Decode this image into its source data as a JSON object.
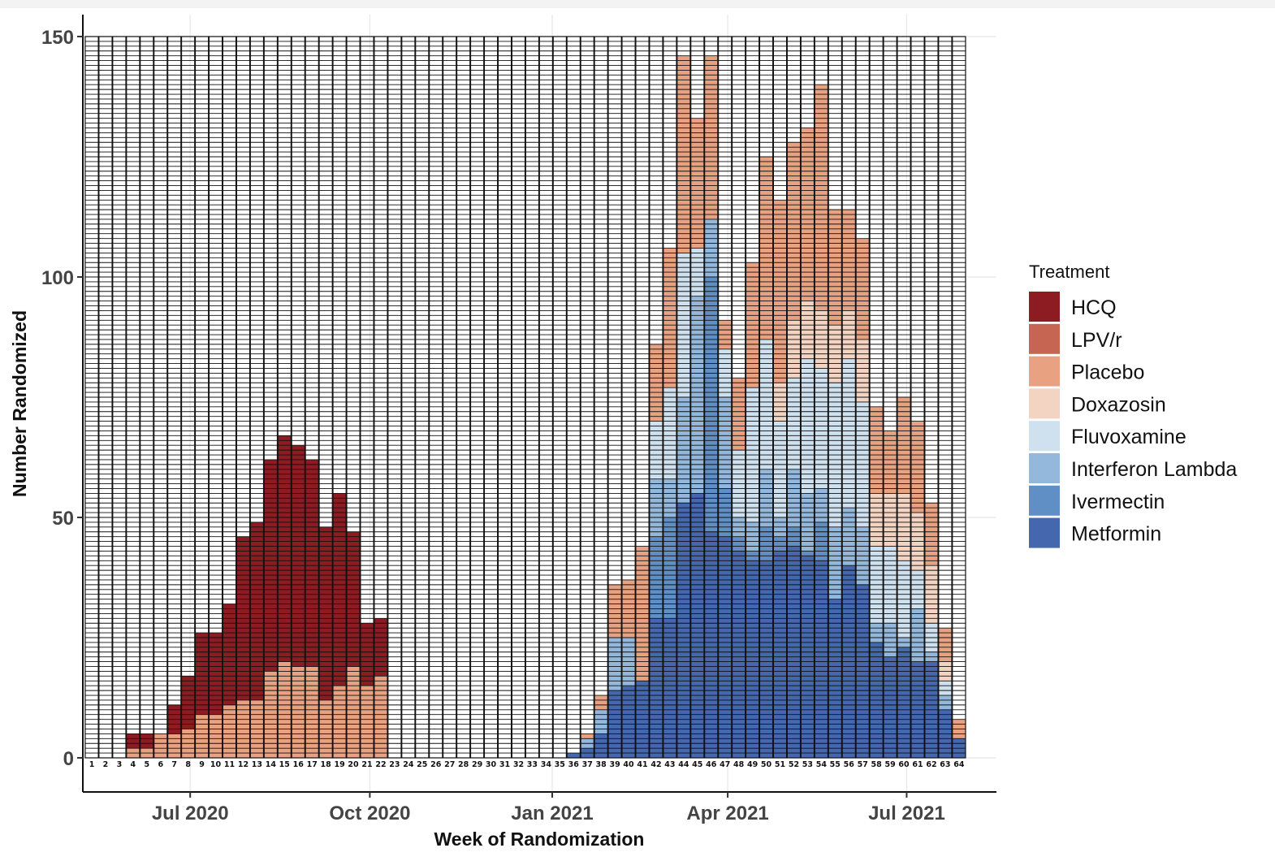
{
  "chart_data": {
    "type": "bar",
    "stacked": true,
    "xlabel": "Week of Randomization",
    "ylabel": "Number Randomized",
    "ylim": [
      0,
      150
    ],
    "y_ticks": [
      0,
      50,
      100,
      150
    ],
    "grid": true,
    "legend_position": "right",
    "legend_title": "Treatment",
    "date_ticks": [
      {
        "label": "Jul 2020",
        "week": 8.15
      },
      {
        "label": "Oct 2020",
        "week": 21.2
      },
      {
        "label": "Jan 2021",
        "week": 34.45
      },
      {
        "label": "Apr 2021",
        "week": 47.2
      },
      {
        "label": "Jul 2021",
        "week": 60.2
      }
    ],
    "categories": [
      "1",
      "2",
      "3",
      "4",
      "5",
      "6",
      "7",
      "8",
      "9",
      "10",
      "11",
      "12",
      "13",
      "14",
      "15",
      "16",
      "17",
      "18",
      "19",
      "20",
      "21",
      "22",
      "23",
      "24",
      "25",
      "26",
      "27",
      "28",
      "29",
      "30",
      "31",
      "32",
      "33",
      "34",
      "35",
      "36",
      "37",
      "38",
      "39",
      "40",
      "41",
      "42",
      "43",
      "44",
      "45",
      "46",
      "47",
      "48",
      "49",
      "50",
      "51",
      "52",
      "53",
      "54",
      "55",
      "56",
      "57",
      "58",
      "59",
      "60",
      "61",
      "62",
      "63",
      "64"
    ],
    "series": [
      {
        "name": "Metformin",
        "color": "#4467ad",
        "values": [
          0,
          0,
          0,
          0,
          0,
          0,
          0,
          0,
          0,
          0,
          0,
          0,
          0,
          0,
          0,
          0,
          0,
          0,
          0,
          0,
          0,
          0,
          0,
          0,
          0,
          0,
          0,
          0,
          0,
          0,
          0,
          0,
          0,
          0,
          0,
          1,
          2,
          5,
          14,
          15,
          16,
          29,
          29,
          53,
          55,
          47,
          46,
          43,
          41,
          41,
          43,
          44,
          42,
          41,
          33,
          40,
          36,
          24,
          21,
          23,
          20,
          20,
          10,
          4
        ]
      },
      {
        "name": "Ivermectin",
        "color": "#5f8fc5",
        "values": [
          0,
          0,
          0,
          0,
          0,
          0,
          0,
          0,
          0,
          0,
          0,
          0,
          0,
          0,
          0,
          0,
          0,
          0,
          0,
          0,
          0,
          0,
          0,
          0,
          0,
          0,
          0,
          0,
          0,
          0,
          0,
          0,
          0,
          0,
          0,
          0,
          0,
          0,
          0,
          0,
          0,
          17,
          21,
          0,
          0,
          53,
          10,
          3,
          2,
          7,
          3,
          4,
          1,
          8,
          0,
          0,
          0,
          0,
          0,
          0,
          0,
          0,
          0,
          0
        ]
      },
      {
        "name": "Interferon Lambda",
        "color": "#93b8db",
        "values": [
          0,
          0,
          0,
          0,
          0,
          0,
          0,
          0,
          0,
          0,
          0,
          0,
          0,
          0,
          0,
          0,
          0,
          0,
          0,
          0,
          0,
          0,
          0,
          0,
          0,
          0,
          0,
          0,
          0,
          0,
          0,
          0,
          0,
          0,
          0,
          0,
          2,
          5,
          11,
          10,
          0,
          12,
          8,
          22,
          41,
          12,
          19,
          4,
          6,
          12,
          4,
          12,
          12,
          7,
          15,
          12,
          12,
          4,
          7,
          2,
          11,
          2,
          3,
          0
        ]
      },
      {
        "name": "Fluvoxamine",
        "color": "#cfe1ef",
        "values": [
          0,
          0,
          0,
          0,
          0,
          0,
          0,
          0,
          0,
          0,
          0,
          0,
          0,
          0,
          0,
          0,
          0,
          0,
          0,
          0,
          0,
          0,
          0,
          0,
          0,
          0,
          0,
          0,
          0,
          0,
          0,
          0,
          0,
          0,
          0,
          0,
          0,
          0,
          0,
          0,
          0,
          12,
          19,
          30,
          10,
          0,
          10,
          14,
          28,
          27,
          20,
          19,
          28,
          25,
          30,
          31,
          26,
          16,
          16,
          16,
          8,
          6,
          3,
          0
        ]
      },
      {
        "name": "Doxazosin",
        "color": "#f3d3c1",
        "values": [
          0,
          0,
          0,
          0,
          0,
          0,
          0,
          0,
          0,
          0,
          0,
          0,
          0,
          0,
          0,
          0,
          0,
          0,
          0,
          0,
          0,
          0,
          0,
          0,
          0,
          0,
          0,
          0,
          0,
          0,
          0,
          0,
          0,
          0,
          0,
          0,
          0,
          0,
          0,
          0,
          0,
          0,
          0,
          0,
          0,
          0,
          0,
          0,
          0,
          0,
          8,
          12,
          12,
          12,
          12,
          10,
          13,
          11,
          11,
          14,
          12,
          12,
          4,
          0
        ]
      },
      {
        "name": "Placebo",
        "color": "#e8a282",
        "values": [
          0,
          0,
          0,
          2,
          2,
          5,
          5,
          6,
          9,
          9,
          11,
          12,
          12,
          18,
          20,
          19,
          19,
          12,
          15,
          19,
          15,
          17,
          0,
          0,
          0,
          0,
          0,
          0,
          0,
          0,
          0,
          0,
          0,
          0,
          0,
          0,
          1,
          3,
          11,
          12,
          28,
          16,
          29,
          41,
          27,
          34,
          6,
          15,
          26,
          38,
          38,
          37,
          36,
          47,
          24,
          21,
          21,
          18,
          13,
          20,
          19,
          13,
          7,
          4
        ]
      },
      {
        "name": "LPV/r",
        "color": "#c76553",
        "values": [
          0,
          0,
          0,
          0,
          0,
          0,
          0,
          0,
          0,
          0,
          0,
          0,
          0,
          0,
          0,
          0,
          0,
          0,
          0,
          0,
          0,
          0,
          0,
          0,
          0,
          0,
          0,
          0,
          0,
          0,
          0,
          0,
          0,
          0,
          0,
          0,
          0,
          0,
          0,
          0,
          0,
          0,
          0,
          0,
          0,
          0,
          0,
          0,
          0,
          0,
          0,
          0,
          0,
          0,
          0,
          0,
          0,
          0,
          0,
          0,
          0,
          0,
          0,
          0
        ]
      },
      {
        "name": "HCQ",
        "color": "#8c1c22",
        "values": [
          0,
          0,
          0,
          3,
          3,
          0,
          6,
          11,
          17,
          17,
          21,
          34,
          37,
          44,
          47,
          46,
          43,
          36,
          40,
          28,
          13,
          12,
          0,
          0,
          0,
          0,
          0,
          0,
          0,
          0,
          0,
          0,
          0,
          0,
          0,
          0,
          0,
          0,
          0,
          0,
          0,
          0,
          0,
          0,
          0,
          0,
          0,
          0,
          0,
          0,
          0,
          0,
          0,
          0,
          0,
          0,
          0,
          0,
          0,
          0,
          0,
          0,
          0,
          0
        ]
      }
    ]
  }
}
